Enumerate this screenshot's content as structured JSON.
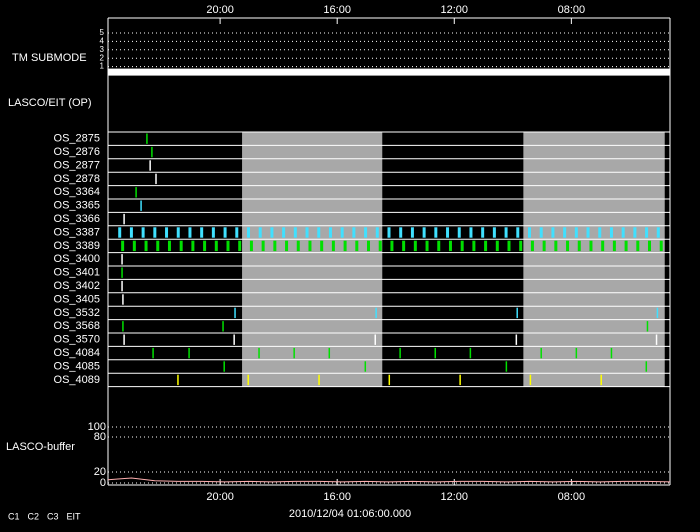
{
  "chart_data": {
    "type": "timeline",
    "xlim": [
      0,
      19.2
    ],
    "xticks": [
      {
        "value": 3.83,
        "label": "20:00"
      },
      {
        "value": 7.83,
        "label": "16:00"
      },
      {
        "value": 11.83,
        "label": "12:00"
      },
      {
        "value": 15.83,
        "label": "08:00"
      }
    ],
    "date_label": "2010/12/04 01:06:00.000",
    "submode": {
      "label": "TM SUBMODE",
      "yticks": [
        5,
        4,
        3,
        2,
        1
      ],
      "x": [
        0,
        19.2
      ],
      "values": [
        1,
        1
      ]
    },
    "lasco_eit_label": "LASCO/EIT (OP)",
    "shaded": [
      [
        4.58,
        9.37
      ],
      [
        14.19,
        19.02
      ]
    ],
    "rows": [
      {
        "name": "OS_2875",
        "color": "#00e000",
        "x": [
          1.33
        ]
      },
      {
        "name": "OS_2876",
        "color": "#00e000",
        "x": [
          1.5
        ]
      },
      {
        "name": "OS_2877",
        "color": "#ffffff",
        "x": [
          1.44
        ]
      },
      {
        "name": "OS_2878",
        "color": "#ffffff",
        "x": [
          1.64
        ]
      },
      {
        "name": "OS_3364",
        "color": "#00e000",
        "x": [
          0.96
        ]
      },
      {
        "name": "OS_3365",
        "color": "#40e0ff",
        "x": [
          1.13
        ]
      },
      {
        "name": "OS_3366",
        "color": "#ffffff",
        "x": [
          0.55
        ]
      },
      {
        "name": "OS_3387",
        "color": "#40e0ff",
        "x": [
          0.4,
          0.8,
          1.2,
          1.6,
          2.0,
          2.4,
          2.8,
          3.2,
          3.6,
          4.0,
          4.4,
          4.8,
          5.2,
          5.6,
          6.0,
          6.4,
          6.8,
          7.2,
          7.6,
          8.0,
          8.4,
          8.8,
          9.2,
          9.6,
          10.0,
          10.4,
          10.8,
          11.2,
          11.6,
          12.0,
          12.4,
          12.8,
          13.2,
          13.6,
          14.0,
          14.4,
          14.8,
          15.2,
          15.6,
          16.0,
          16.4,
          16.8,
          17.2,
          17.6,
          18.0,
          18.4,
          18.8
        ]
      },
      {
        "name": "OS_3389",
        "color": "#00e000",
        "x": [
          0.5,
          0.9,
          1.3,
          1.7,
          2.1,
          2.5,
          2.9,
          3.3,
          3.7,
          4.1,
          4.5,
          4.9,
          5.3,
          5.7,
          6.1,
          6.5,
          6.9,
          7.3,
          7.7,
          8.1,
          8.5,
          8.9,
          9.3,
          9.7,
          10.1,
          10.5,
          10.9,
          11.3,
          11.7,
          12.1,
          12.5,
          12.9,
          13.3,
          13.7,
          14.1,
          14.5,
          14.9,
          15.3,
          15.7,
          16.1,
          16.5,
          16.9,
          17.3,
          17.7,
          18.1,
          18.5,
          18.9
        ]
      },
      {
        "name": "OS_3400",
        "color": "#ffffff",
        "x": [
          0.48
        ]
      },
      {
        "name": "OS_3401",
        "color": "#00e000",
        "x": [
          0.48
        ]
      },
      {
        "name": "OS_3402",
        "color": "#ffffff",
        "x": [
          0.48
        ]
      },
      {
        "name": "OS_3405",
        "color": "#ffffff",
        "x": [
          0.51
        ]
      },
      {
        "name": "OS_3532",
        "color": "#40e0ff",
        "x": [
          4.34,
          9.16,
          13.98,
          18.77
        ]
      },
      {
        "name": "OS_3568",
        "color": "#00e000",
        "x": [
          0.51,
          3.93,
          18.43
        ]
      },
      {
        "name": "OS_3570",
        "color": "#ffffff",
        "x": [
          0.55,
          4.31,
          9.13,
          13.95,
          18.74
        ]
      },
      {
        "name": "OS_4084",
        "color": "#00e000",
        "x": [
          1.54,
          2.77,
          5.16,
          6.36,
          7.56,
          9.98,
          11.18,
          12.38,
          14.8,
          16.0,
          17.2
        ]
      },
      {
        "name": "OS_4085",
        "color": "#00e000",
        "x": [
          3.97,
          8.79,
          13.61,
          18.39
        ]
      },
      {
        "name": "OS_4089",
        "color": "#ffff00",
        "x": [
          2.39,
          4.79,
          7.21,
          9.61,
          12.03,
          14.43,
          16.85
        ]
      }
    ],
    "buffer": {
      "label": "LASCO-buffer",
      "upper_ylim": [
        80,
        100
      ],
      "upper_yticks": [
        100,
        80
      ],
      "lower_ylim": [
        0,
        20
      ],
      "lower_yticks": [
        20,
        0
      ],
      "color": "#ffb0b0",
      "x": [
        0,
        0.8,
        1.6,
        2.4,
        3.2,
        4.0,
        4.8,
        5.6,
        6.4,
        7.2,
        8.0,
        8.8,
        9.6,
        10.4,
        11.2,
        12.0,
        12.8,
        13.6,
        14.4,
        15.2,
        16.0,
        16.8,
        17.6,
        18.4,
        19.2
      ],
      "values": [
        6,
        9,
        4,
        3,
        3,
        2,
        3,
        2,
        3,
        3,
        2,
        3,
        2,
        3,
        2,
        3,
        3,
        2,
        3,
        2,
        3,
        2,
        3,
        3,
        2
      ]
    },
    "legend": [
      {
        "name": "C1",
        "color": "#ff3030"
      },
      {
        "name": "C2",
        "color": "#00e000"
      },
      {
        "name": "C3",
        "color": "#40e0ff"
      },
      {
        "name": "EIT",
        "color": "#ffffff"
      }
    ]
  }
}
